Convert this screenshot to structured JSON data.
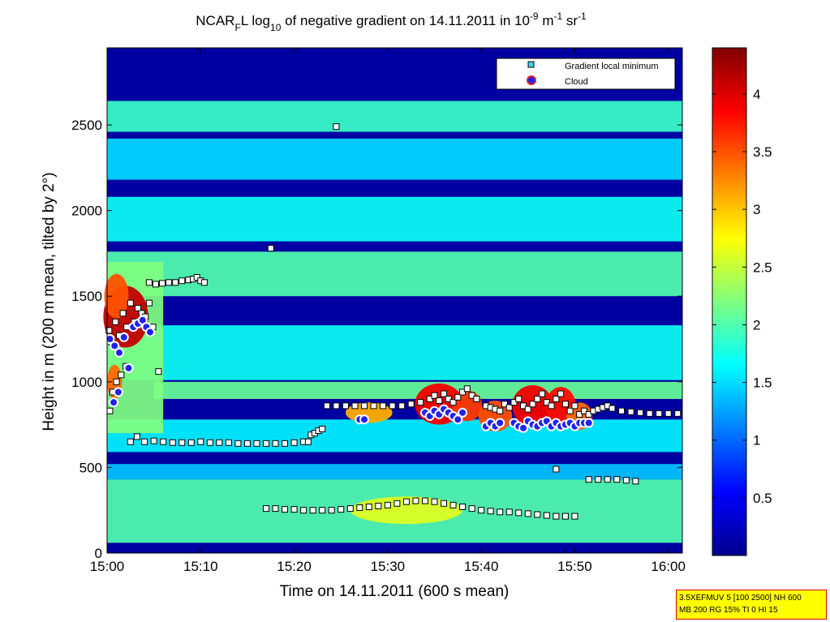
{
  "colors": {
    "colormap": "jet",
    "legend_min_marker_fill": "#3fd6e6",
    "legend_cloud_fill": "#2222ee",
    "legend_cloud_edge": "#dd2222",
    "param_box_bg": "#ffff00",
    "param_box_border": "#d00000"
  },
  "chart_data": {
    "type": "heatmap",
    "title_parts": {
      "a": "NCAR",
      "a_sub": "F",
      "b": "L log",
      "b_sub": "10",
      "c": " of negative gradient on 14.11.2011 in 10",
      "c_sup": "-9",
      "d": " m",
      "d_sup": "-1",
      "e": " sr",
      "e_sup": "-1"
    },
    "xlabel": "Time on 14.11.2011 (600 s mean)",
    "ylabel": "Height in m (200 m mean, tilted by 2°)",
    "xlim": [
      0,
      61.5
    ],
    "ylim": [
      0,
      2950
    ],
    "x_ticks": [
      {
        "v": 0,
        "label": "15:00"
      },
      {
        "v": 10,
        "label": "15:10"
      },
      {
        "v": 20,
        "label": "15:20"
      },
      {
        "v": 30,
        "label": "15:30"
      },
      {
        "v": 40,
        "label": "15:40"
      },
      {
        "v": 50,
        "label": "15:50"
      },
      {
        "v": 60,
        "label": "16:00"
      }
    ],
    "y_ticks": [
      {
        "v": 0,
        "label": "0"
      },
      {
        "v": 500,
        "label": "500"
      },
      {
        "v": 1000,
        "label": "1000"
      },
      {
        "v": 1500,
        "label": "1500"
      },
      {
        "v": 2000,
        "label": "2000"
      },
      {
        "v": 2500,
        "label": "2500"
      }
    ],
    "colorbar": {
      "min": 0,
      "max": 4.4,
      "ticks": [
        {
          "v": 0.5,
          "label": "0.5"
        },
        {
          "v": 1,
          "label": "1"
        },
        {
          "v": 1.5,
          "label": "1.5"
        },
        {
          "v": 2,
          "label": "2"
        },
        {
          "v": 2.5,
          "label": "2.5"
        },
        {
          "v": 3,
          "label": "3"
        },
        {
          "v": 3.5,
          "label": "3.5"
        },
        {
          "v": 4,
          "label": "4"
        }
      ]
    },
    "legend": {
      "location": "top-right",
      "entries": [
        {
          "label": "Gradient local minimum",
          "marker": "square"
        },
        {
          "label": "Cloud",
          "marker": "circle"
        }
      ]
    },
    "bands": [
      {
        "x0": 0,
        "x1": 61.5,
        "y0": 2460,
        "y1": 2640,
        "v": 1.9
      },
      {
        "x0": 0,
        "x1": 61.5,
        "y0": 2180,
        "y1": 2420,
        "v": 1.5
      },
      {
        "x0": 0,
        "x1": 61.5,
        "y0": 1820,
        "y1": 2080,
        "v": 1.7
      },
      {
        "x0": 0,
        "x1": 61.5,
        "y0": 1500,
        "y1": 1760,
        "v": 2.0
      },
      {
        "x0": 0,
        "x1": 61.5,
        "y0": 1010,
        "y1": 1330,
        "v": 1.7
      },
      {
        "x0": 5,
        "x1": 61.5,
        "y0": 900,
        "y1": 1000,
        "v": 2.1
      },
      {
        "x0": 0,
        "x1": 61.5,
        "y0": 590,
        "y1": 780,
        "v": 1.6
      },
      {
        "x0": 0,
        "x1": 61.5,
        "y0": 60,
        "y1": 430,
        "v": 2.0
      },
      {
        "x0": 0,
        "x1": 61.5,
        "y0": 430,
        "y1": 520,
        "v": 1.4
      },
      {
        "x0": 0,
        "x1": 6,
        "y0": 700,
        "y1": 1700,
        "v": 2.2
      }
    ],
    "hotspots": [
      {
        "x": 2,
        "y": 1380,
        "rx": 2.4,
        "ry": 180,
        "v": 4.1
      },
      {
        "x": 1,
        "y": 1500,
        "rx": 1.3,
        "ry": 130,
        "v": 3.5
      },
      {
        "x": 0.8,
        "y": 1000,
        "rx": 0.8,
        "ry": 100,
        "v": 3.4
      },
      {
        "x": 28,
        "y": 820,
        "rx": 2.5,
        "ry": 60,
        "v": 3.1
      },
      {
        "x": 35.5,
        "y": 870,
        "rx": 2.6,
        "ry": 120,
        "v": 3.9
      },
      {
        "x": 38.5,
        "y": 860,
        "rx": 1.6,
        "ry": 90,
        "v": 3.6
      },
      {
        "x": 41.5,
        "y": 800,
        "rx": 1.8,
        "ry": 90,
        "v": 3.5
      },
      {
        "x": 45.5,
        "y": 860,
        "rx": 2.2,
        "ry": 120,
        "v": 3.9
      },
      {
        "x": 48.5,
        "y": 860,
        "rx": 1.6,
        "ry": 110,
        "v": 3.8
      },
      {
        "x": 50.5,
        "y": 800,
        "rx": 1.4,
        "ry": 80,
        "v": 3.4
      },
      {
        "x": 32,
        "y": 250,
        "rx": 6,
        "ry": 80,
        "v": 2.6
      }
    ],
    "series": [
      {
        "name": "Gradient local minimum",
        "marker": "square",
        "points": [
          [
            0.2,
            1300
          ],
          [
            0.5,
            1230
          ],
          [
            0.9,
            1350
          ],
          [
            1.3,
            1270
          ],
          [
            1.7,
            1400
          ],
          [
            2.1,
            1320
          ],
          [
            2.5,
            1460
          ],
          [
            2.9,
            1350
          ],
          [
            3.3,
            1430
          ],
          [
            3.7,
            1400
          ],
          [
            4.1,
            1380
          ],
          [
            4.5,
            1460
          ],
          [
            4.9,
            1320
          ],
          [
            0.3,
            830
          ],
          [
            0.6,
            940
          ],
          [
            1.0,
            1000
          ],
          [
            1.5,
            1040
          ],
          [
            2.0,
            1090
          ],
          [
            5.5,
            1060
          ],
          [
            4.5,
            1580
          ],
          [
            5.2,
            1570
          ],
          [
            5.9,
            1575
          ],
          [
            6.6,
            1580
          ],
          [
            7.3,
            1580
          ],
          [
            8.0,
            1590
          ],
          [
            8.7,
            1595
          ],
          [
            9.2,
            1600
          ],
          [
            9.6,
            1610
          ],
          [
            10.0,
            1590
          ],
          [
            10.4,
            1580
          ],
          [
            2.5,
            650
          ],
          [
            3.2,
            680
          ],
          [
            4.0,
            650
          ],
          [
            5.0,
            655
          ],
          [
            6.0,
            650
          ],
          [
            7.0,
            645
          ],
          [
            8.0,
            645
          ],
          [
            9.0,
            645
          ],
          [
            10.0,
            650
          ],
          [
            11.0,
            645
          ],
          [
            12.0,
            645
          ],
          [
            13.0,
            645
          ],
          [
            14.0,
            640
          ],
          [
            15.0,
            640
          ],
          [
            16.0,
            640
          ],
          [
            17.0,
            640
          ],
          [
            18.0,
            640
          ],
          [
            19.0,
            640
          ],
          [
            20.0,
            645
          ],
          [
            21.0,
            650
          ],
          [
            21.5,
            650
          ],
          [
            21.8,
            690
          ],
          [
            22.2,
            700
          ],
          [
            22.6,
            715
          ],
          [
            23.0,
            725
          ],
          [
            23.5,
            860
          ],
          [
            24.5,
            860
          ],
          [
            25.5,
            860
          ],
          [
            26.5,
            860
          ],
          [
            27.5,
            860
          ],
          [
            28.5,
            860
          ],
          [
            29.5,
            860
          ],
          [
            30.5,
            860
          ],
          [
            31.5,
            860
          ],
          [
            32.5,
            870
          ],
          [
            33.5,
            880
          ],
          [
            34.5,
            900
          ],
          [
            35.0,
            920
          ],
          [
            35.5,
            890
          ],
          [
            36.0,
            930
          ],
          [
            36.5,
            900
          ],
          [
            37.0,
            880
          ],
          [
            37.5,
            910
          ],
          [
            38.0,
            940
          ],
          [
            38.5,
            960
          ],
          [
            39.0,
            920
          ],
          [
            39.5,
            900
          ],
          [
            40.5,
            860
          ],
          [
            41.0,
            850
          ],
          [
            41.5,
            840
          ],
          [
            42.0,
            830
          ],
          [
            42.5,
            870
          ],
          [
            43.0,
            850
          ],
          [
            43.5,
            880
          ],
          [
            44.0,
            900
          ],
          [
            44.5,
            860
          ],
          [
            45.0,
            840
          ],
          [
            45.5,
            870
          ],
          [
            46.0,
            900
          ],
          [
            46.5,
            930
          ],
          [
            47.0,
            880
          ],
          [
            47.5,
            860
          ],
          [
            48.0,
            900
          ],
          [
            48.5,
            930
          ],
          [
            49.0,
            870
          ],
          [
            49.5,
            830
          ],
          [
            50.0,
            860
          ],
          [
            50.5,
            810
          ],
          [
            51.0,
            830
          ],
          [
            51.5,
            810
          ],
          [
            52.0,
            830
          ],
          [
            52.5,
            840
          ],
          [
            53.0,
            850
          ],
          [
            53.5,
            860
          ],
          [
            54.0,
            845
          ],
          [
            55.0,
            830
          ],
          [
            56.0,
            825
          ],
          [
            57.0,
            820
          ],
          [
            58.0,
            815
          ],
          [
            59.0,
            815
          ],
          [
            60.0,
            815
          ],
          [
            61.0,
            815
          ],
          [
            51.5,
            430
          ],
          [
            52.5,
            430
          ],
          [
            53.5,
            430
          ],
          [
            54.5,
            430
          ],
          [
            55.5,
            425
          ],
          [
            56.5,
            420
          ],
          [
            48.0,
            490
          ],
          [
            17.0,
            260
          ],
          [
            18.0,
            260
          ],
          [
            19.0,
            255
          ],
          [
            20.0,
            255
          ],
          [
            21.0,
            250
          ],
          [
            22.0,
            250
          ],
          [
            23.0,
            250
          ],
          [
            24.0,
            250
          ],
          [
            25.0,
            255
          ],
          [
            26.0,
            260
          ],
          [
            27.0,
            265
          ],
          [
            28.0,
            270
          ],
          [
            29.0,
            275
          ],
          [
            30.0,
            280
          ],
          [
            31.0,
            290
          ],
          [
            32.0,
            300
          ],
          [
            33.0,
            305
          ],
          [
            34.0,
            305
          ],
          [
            35.0,
            300
          ],
          [
            36.0,
            290
          ],
          [
            37.0,
            280
          ],
          [
            38.0,
            270
          ],
          [
            39.0,
            260
          ],
          [
            40.0,
            250
          ],
          [
            41.0,
            245
          ],
          [
            42.0,
            240
          ],
          [
            43.0,
            240
          ],
          [
            44.0,
            235
          ],
          [
            45.0,
            230
          ],
          [
            46.0,
            225
          ],
          [
            47.0,
            220
          ],
          [
            48.0,
            215
          ],
          [
            49.0,
            215
          ],
          [
            50.0,
            215
          ],
          [
            17.5,
            1780
          ],
          [
            24.5,
            2490
          ]
        ]
      },
      {
        "name": "Cloud",
        "marker": "circle",
        "points": [
          [
            0.3,
            1250
          ],
          [
            0.8,
            1210
          ],
          [
            1.3,
            1170
          ],
          [
            1.8,
            1260
          ],
          [
            2.3,
            1080
          ],
          [
            2.8,
            1320
          ],
          [
            3.3,
            1340
          ],
          [
            3.8,
            1360
          ],
          [
            4.2,
            1320
          ],
          [
            4.6,
            1290
          ],
          [
            0.7,
            880
          ],
          [
            1.2,
            940
          ],
          [
            27.0,
            780
          ],
          [
            27.5,
            780
          ],
          [
            34.0,
            820
          ],
          [
            34.5,
            800
          ],
          [
            35.0,
            830
          ],
          [
            35.5,
            810
          ],
          [
            36.0,
            840
          ],
          [
            36.5,
            820
          ],
          [
            37.0,
            800
          ],
          [
            37.5,
            780
          ],
          [
            38.0,
            820
          ],
          [
            40.5,
            740
          ],
          [
            41.0,
            760
          ],
          [
            41.5,
            740
          ],
          [
            42.0,
            760
          ],
          [
            43.5,
            760
          ],
          [
            44.0,
            740
          ],
          [
            44.5,
            730
          ],
          [
            45.0,
            770
          ],
          [
            45.5,
            750
          ],
          [
            46.0,
            740
          ],
          [
            46.5,
            760
          ],
          [
            47.0,
            770
          ],
          [
            47.5,
            740
          ],
          [
            48.0,
            760
          ],
          [
            48.5,
            740
          ],
          [
            49.0,
            750
          ],
          [
            49.5,
            760
          ],
          [
            50.0,
            740
          ],
          [
            50.5,
            760
          ],
          [
            51.0,
            760
          ],
          [
            51.5,
            760
          ]
        ]
      }
    ]
  },
  "param_box": {
    "line1": "3.5XEFMUV 5 [100 2500] NH 600",
    "line2": "MB 200 RG 15% TI 0 HI 15"
  }
}
